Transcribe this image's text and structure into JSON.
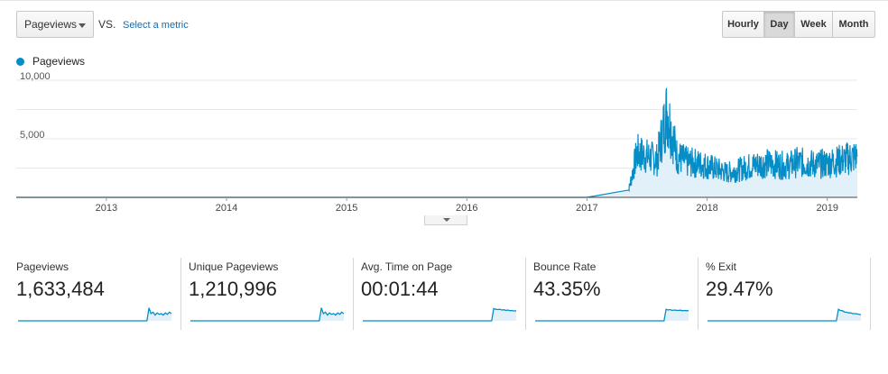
{
  "toolbar": {
    "metric_select": {
      "value": "Pageviews"
    },
    "vs_label": "VS.",
    "select_metric_link": "Select a metric",
    "granularity": [
      {
        "label": "Hourly",
        "active": false
      },
      {
        "label": "Day",
        "active": true
      },
      {
        "label": "Week",
        "active": false
      },
      {
        "label": "Month",
        "active": false
      }
    ]
  },
  "legend": {
    "series_name": "Pageviews",
    "color": "#058dc7"
  },
  "chart_data": {
    "type": "area",
    "title": "",
    "xlabel": "",
    "ylabel": "",
    "ylim": [
      0,
      10000
    ],
    "yticks": [
      "10,000",
      "5,000"
    ],
    "xticks": [
      "2013",
      "2014",
      "2015",
      "2016",
      "2017",
      "2018",
      "2019"
    ],
    "x_range": [
      "2012-04",
      "2019-04"
    ],
    "grid": true,
    "series": [
      {
        "name": "Pageviews",
        "x": [
          "2012-04",
          "2013-01",
          "2014-01",
          "2015-01",
          "2016-01",
          "2017-01",
          "2017-05",
          "2017-06",
          "2017-07",
          "2017-08",
          "2017-09",
          "2017-10",
          "2017-11",
          "2017-12",
          "2018-01",
          "2018-02",
          "2018-03",
          "2018-04",
          "2018-05",
          "2018-06",
          "2018-07",
          "2018-08",
          "2018-09",
          "2018-10",
          "2018-11",
          "2018-12",
          "2019-01",
          "2019-02",
          "2019-03",
          "2019-04"
        ],
        "values": [
          0,
          0,
          0,
          0,
          0,
          0,
          0,
          3800,
          3500,
          3200,
          7400,
          3500,
          3000,
          2900,
          2700,
          2400,
          2100,
          2300,
          2600,
          2800,
          2900,
          2800,
          2700,
          3000,
          2900,
          2800,
          2900,
          3100,
          3300,
          3500
        ]
      }
    ]
  },
  "scorecards": [
    {
      "label": "Pageviews",
      "value": "1,633,484",
      "spark": [
        0,
        0,
        0,
        0,
        0,
        0,
        0,
        0,
        0,
        0,
        0,
        0,
        0,
        0,
        0,
        0,
        0,
        0,
        0,
        0,
        0,
        0,
        0,
        0,
        0,
        0,
        0,
        0,
        0,
        0,
        0,
        0,
        0,
        0,
        0,
        0,
        0,
        0,
        0,
        0,
        0,
        0,
        0,
        0,
        0,
        0,
        0,
        0,
        0,
        0,
        0,
        0,
        0,
        0,
        0,
        0,
        0,
        0,
        0,
        0,
        0,
        0,
        0,
        0,
        0.9,
        0.5,
        0.6,
        0.4,
        0.55,
        0.45,
        0.5,
        0.4,
        0.55,
        0.45,
        0.6,
        0.5
      ]
    },
    {
      "label": "Unique Pageviews",
      "value": "1,210,996",
      "spark": [
        0,
        0,
        0,
        0,
        0,
        0,
        0,
        0,
        0,
        0,
        0,
        0,
        0,
        0,
        0,
        0,
        0,
        0,
        0,
        0,
        0,
        0,
        0,
        0,
        0,
        0,
        0,
        0,
        0,
        0,
        0,
        0,
        0,
        0,
        0,
        0,
        0,
        0,
        0,
        0,
        0,
        0,
        0,
        0,
        0,
        0,
        0,
        0,
        0,
        0,
        0,
        0,
        0,
        0,
        0,
        0,
        0,
        0,
        0,
        0,
        0,
        0,
        0,
        0,
        0.9,
        0.5,
        0.6,
        0.4,
        0.55,
        0.45,
        0.5,
        0.4,
        0.55,
        0.45,
        0.6,
        0.5
      ]
    },
    {
      "label": "Avg. Time on Page",
      "value": "00:01:44",
      "spark": [
        0,
        0,
        0,
        0,
        0,
        0,
        0,
        0,
        0,
        0,
        0,
        0,
        0,
        0,
        0,
        0,
        0,
        0,
        0,
        0,
        0,
        0,
        0,
        0,
        0,
        0,
        0,
        0,
        0,
        0,
        0,
        0,
        0,
        0,
        0,
        0,
        0,
        0,
        0,
        0,
        0,
        0,
        0,
        0,
        0,
        0,
        0,
        0,
        0,
        0,
        0,
        0,
        0,
        0,
        0,
        0,
        0,
        0,
        0,
        0,
        0,
        0,
        0,
        0,
        0.85,
        0.8,
        0.78,
        0.8,
        0.75,
        0.77,
        0.72,
        0.75,
        0.7,
        0.72,
        0.68,
        0.7
      ]
    },
    {
      "label": "Bounce Rate",
      "value": "43.35%",
      "spark": [
        0,
        0,
        0,
        0,
        0,
        0,
        0,
        0,
        0,
        0,
        0,
        0,
        0,
        0,
        0,
        0,
        0,
        0,
        0,
        0,
        0,
        0,
        0,
        0,
        0,
        0,
        0,
        0,
        0,
        0,
        0,
        0,
        0,
        0,
        0,
        0,
        0,
        0,
        0,
        0,
        0,
        0,
        0,
        0,
        0,
        0,
        0,
        0,
        0,
        0,
        0,
        0,
        0,
        0,
        0,
        0,
        0,
        0,
        0,
        0,
        0,
        0,
        0,
        0,
        0.8,
        0.75,
        0.78,
        0.72,
        0.75,
        0.73,
        0.72,
        0.74,
        0.7,
        0.72,
        0.7,
        0.71
      ]
    },
    {
      "label": "% Exit",
      "value": "29.47%",
      "spark": [
        0,
        0,
        0,
        0,
        0,
        0,
        0,
        0,
        0,
        0,
        0,
        0,
        0,
        0,
        0,
        0,
        0,
        0,
        0,
        0,
        0,
        0,
        0,
        0,
        0,
        0,
        0,
        0,
        0,
        0,
        0,
        0,
        0,
        0,
        0,
        0,
        0,
        0,
        0,
        0,
        0,
        0,
        0,
        0,
        0,
        0,
        0,
        0,
        0,
        0,
        0,
        0,
        0,
        0,
        0,
        0,
        0,
        0,
        0,
        0,
        0,
        0,
        0,
        0,
        0.8,
        0.72,
        0.7,
        0.6,
        0.6,
        0.55,
        0.55,
        0.5,
        0.5,
        0.48,
        0.45,
        0.42
      ]
    }
  ]
}
